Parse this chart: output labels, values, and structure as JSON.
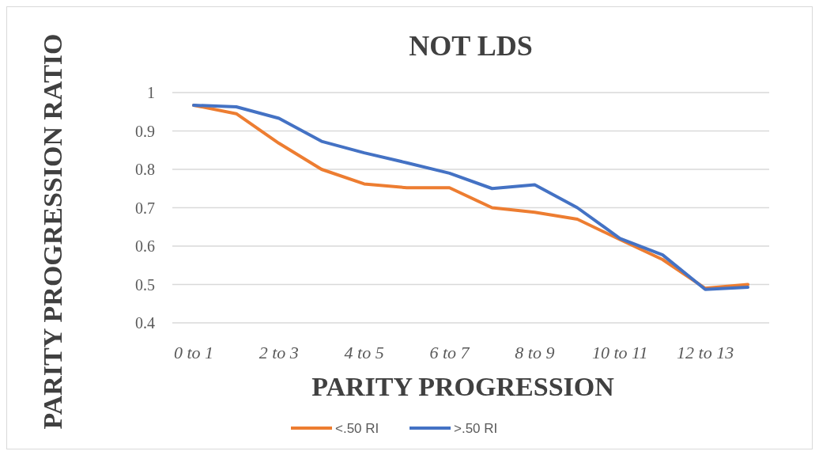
{
  "chart_data": {
    "type": "line",
    "title": "NOT LDS",
    "xlabel": "PARITY PROGRESSION",
    "ylabel": "PARITY PROGRESSION RATIO",
    "categories": [
      "0 to 1",
      null,
      "2 to 3",
      null,
      "4 to 5",
      null,
      "6 to 7",
      null,
      "8 to 9",
      null,
      "10 to 11",
      null,
      "12 to 13",
      null
    ],
    "series": [
      {
        "name": "<.50 RI",
        "color": "#ed7d31",
        "values": [
          0.967,
          0.945,
          0.868,
          0.8,
          0.762,
          0.752,
          0.752,
          0.7,
          0.688,
          0.67,
          0.617,
          0.565,
          0.49,
          0.5
        ]
      },
      {
        "name": ">.50 RI",
        "color": "#4472c4",
        "values": [
          0.967,
          0.963,
          0.933,
          0.873,
          0.843,
          0.817,
          0.79,
          0.75,
          0.76,
          0.7,
          0.62,
          0.577,
          0.487,
          0.493
        ]
      }
    ],
    "ylim": [
      0.4,
      1
    ],
    "yticks": [
      0.4,
      0.5,
      0.6,
      0.7,
      0.8,
      0.9,
      1
    ],
    "grid": "y",
    "legend": "bottom",
    "marker": "none",
    "line_style": "solid"
  }
}
